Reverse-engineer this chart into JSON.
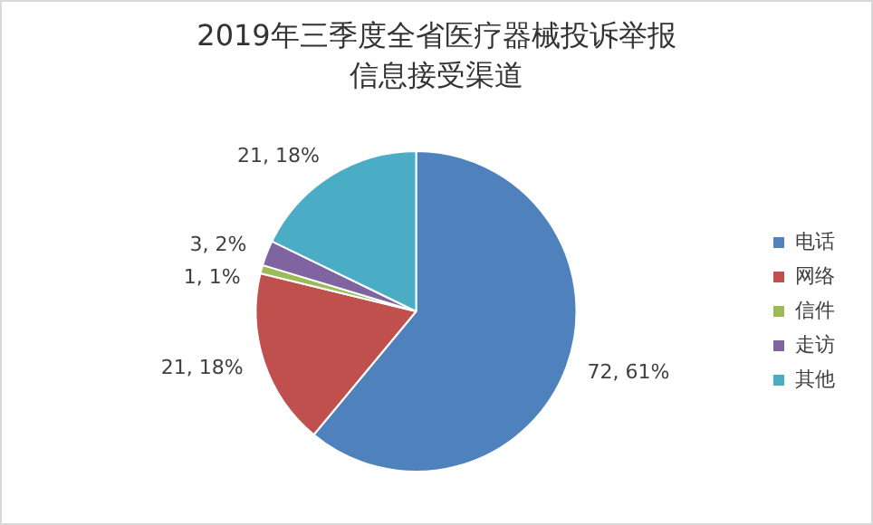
{
  "chart_data": {
    "type": "pie",
    "title": "2019年三季度全省医疗器械投诉举报信息接受渠道",
    "categories": [
      "电话",
      "网络",
      "信件",
      "走访",
      "其他"
    ],
    "values": [
      72,
      21,
      1,
      3,
      21
    ],
    "colors": [
      "#4f81bd",
      "#c0504d",
      "#9bbb59",
      "#8064a2",
      "#4bacc6"
    ],
    "value_labels": [
      "72, 61%",
      "21, 18%",
      "1, 1%",
      "3, 2%",
      "21, 18%"
    ],
    "legend": "right"
  }
}
